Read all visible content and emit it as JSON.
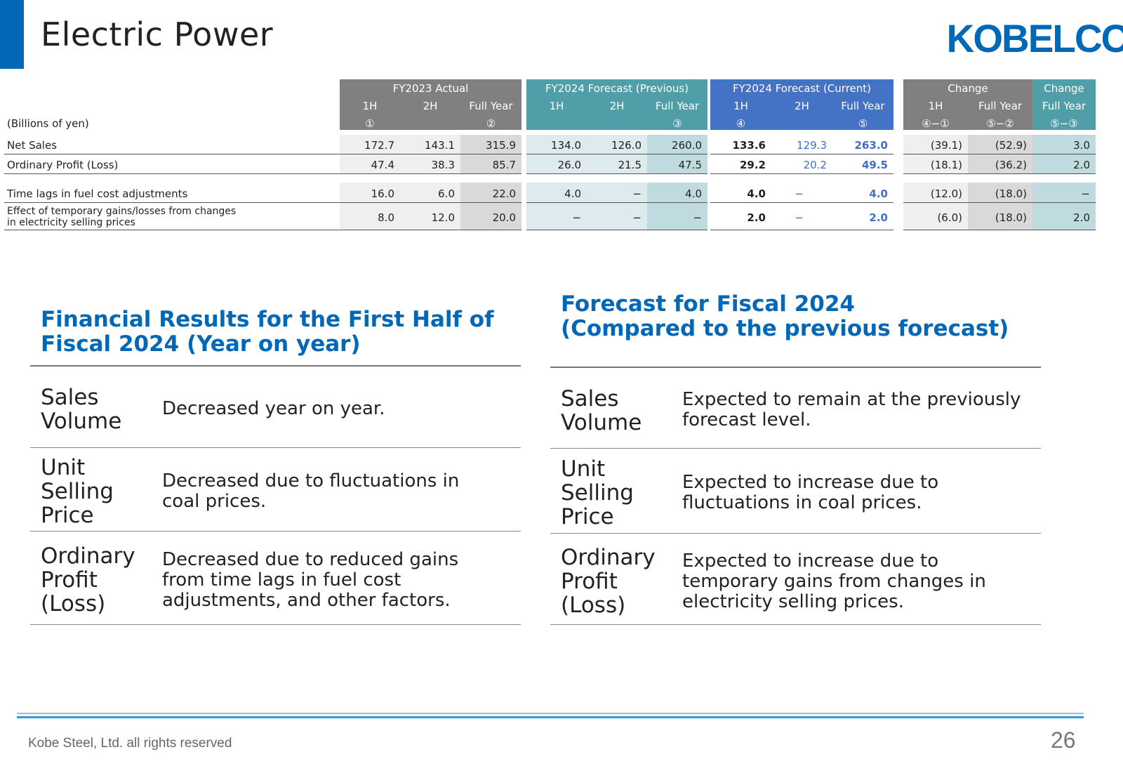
{
  "header": {
    "title": "Electric Power",
    "logo_text": "KOBELCO"
  },
  "table": {
    "unit_label": "(Billions of yen)",
    "groups": {
      "fy2023": "FY2023 Actual",
      "fy2024_prev": "FY2024 Forecast (Previous)",
      "fy2024_curr": "FY2024 Forecast (Current)",
      "change1": "Change",
      "change2": "Change"
    },
    "cols": {
      "h1": "1H",
      "h2": "2H",
      "full": "Full Year",
      "m1": "①",
      "m2": "②",
      "m3": "③",
      "m4": "④",
      "m5": "⑤",
      "d41": "④−①",
      "d52": "⑤−②",
      "d53": "⑤−③"
    },
    "rows": [
      {
        "label": "Net Sales",
        "v": [
          "172.7",
          "143.1",
          "315.9",
          "134.0",
          "126.0",
          "260.0",
          "133.6",
          "129.3",
          "263.0",
          "(39.1)",
          "(52.9)",
          "3.0"
        ]
      },
      {
        "label": "Ordinary Profit (Loss)",
        "v": [
          "47.4",
          "38.3",
          "85.7",
          "26.0",
          "21.5",
          "47.5",
          "29.2",
          "20.2",
          "49.5",
          "(18.1)",
          "(36.2)",
          "2.0"
        ]
      },
      {
        "label": "Time lags in fuel cost adjustments",
        "v": [
          "16.0",
          "6.0",
          "22.0",
          "4.0",
          "−",
          "4.0",
          "4.0",
          "−",
          "4.0",
          "(12.0)",
          "(18.0)",
          "−"
        ]
      },
      {
        "label1": "Effect of temporary gains/losses from changes",
        "label2": "in electricity selling prices",
        "v": [
          "8.0",
          "12.0",
          "20.0",
          "−",
          "−",
          "−",
          "2.0",
          "−",
          "2.0",
          "(6.0)",
          "(18.0)",
          "2.0"
        ]
      }
    ]
  },
  "left_section": {
    "title1": "Financial Results for the First Half of",
    "title2": "Fiscal 2024 (Year on year)",
    "items": [
      {
        "h1": "Sales",
        "h2": "Volume",
        "h3": "",
        "b1": "Decreased year on year.",
        "b2": "",
        "b3": ""
      },
      {
        "h1": "Unit",
        "h2": "Selling",
        "h3": "Price",
        "b1": "Decreased due to fluctuations in",
        "b2": "coal prices.",
        "b3": ""
      },
      {
        "h1": "Ordinary",
        "h2": "Profit",
        "h3": "(Loss)",
        "b1": "Decreased due to reduced gains",
        "b2": "from time lags in fuel cost",
        "b3": "adjustments, and other factors."
      }
    ]
  },
  "right_section": {
    "title1": "Forecast for Fiscal 2024",
    "title2": "(Compared to the previous forecast)",
    "items": [
      {
        "h1": "Sales",
        "h2": "Volume",
        "h3": "",
        "b1": "Expected to remain at the previously",
        "b2": "forecast level.",
        "b3": ""
      },
      {
        "h1": "Unit",
        "h2": "Selling",
        "h3": "Price",
        "b1": "Expected to increase due to",
        "b2": "fluctuations in coal prices.",
        "b3": ""
      },
      {
        "h1": "Ordinary",
        "h2": "Profit",
        "h3": "(Loss)",
        "b1": "Expected to increase due to",
        "b2": "temporary gains from changes in",
        "b3": "electricity selling prices."
      }
    ]
  },
  "footer": {
    "company": "Kobe Steel, Ltd.  all rights reserved",
    "page": "26"
  },
  "colors": {
    "brand": "#0068b7",
    "gray_header": "#808080",
    "teal_header": "#4f9ea8",
    "blue_header": "#4472c4",
    "blue_value": "#3f6fc6"
  }
}
